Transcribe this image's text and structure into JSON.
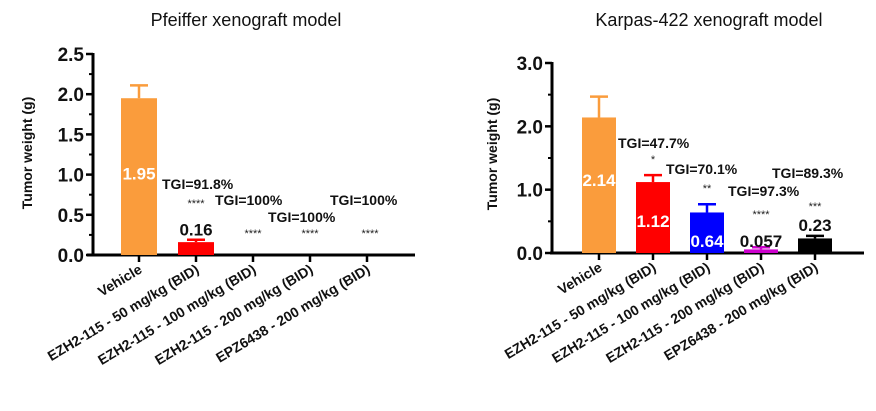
{
  "chart_data": [
    {
      "type": "bar",
      "title": "Pfeiffer xenograft model",
      "xlabel": "",
      "ylabel": "Tumor weight (g)",
      "ylim": [
        0,
        2.5
      ],
      "yticks": [
        "0.0",
        "0.5",
        "1.0",
        "1.5",
        "2.0",
        "2.5"
      ],
      "categories": [
        "Vehicle",
        "EZH2-115 - 50 mg/kg (BID)",
        "EZH2-115 - 100 mg/kg (BID)",
        "EZH2-115 - 200 mg/kg (BID)",
        "EPZ6438 - 200 mg/kg (BID)"
      ],
      "values": [
        1.95,
        0.16,
        0,
        0,
        0
      ],
      "error_upper": [
        2.11,
        0.19,
        0,
        0,
        0
      ],
      "colors": [
        "#FA9C3C",
        "#FF0000",
        "#FF0000",
        "#FF0000",
        "#FF0000"
      ],
      "value_labels": [
        "1.95",
        "0.16",
        "",
        "",
        ""
      ],
      "significance": [
        "",
        "****",
        "****",
        "****",
        "****"
      ],
      "tgi_labels": [
        "",
        "TGI=91.8%",
        "TGI=100%",
        "TGI=100%",
        "TGI=100%"
      ]
    },
    {
      "type": "bar",
      "title": "Karpas-422 xenograft model",
      "xlabel": "",
      "ylabel": "Tumor weight (g)",
      "ylim": [
        0,
        3.0
      ],
      "yticks": [
        "0.0",
        "1.0",
        "2.0",
        "3.0"
      ],
      "categories": [
        "Vehicle",
        "EZH2-115 - 50 mg/kg (BID)",
        "EZH2-115 - 100 mg/kg (BID)",
        "EZH2-115 - 200 mg/kg (BID)",
        "EPZ6438 - 200 mg/kg (BID)"
      ],
      "values": [
        2.14,
        1.12,
        0.64,
        0.057,
        0.23
      ],
      "error_upper": [
        2.47,
        1.23,
        0.77,
        0.09,
        0.27
      ],
      "colors": [
        "#FA9C3C",
        "#FF0000",
        "#0000FF",
        "#CC00CC",
        "#000000"
      ],
      "value_labels": [
        "2.14",
        "1.12",
        "0.64",
        "0.057",
        "0.23"
      ],
      "significance": [
        "",
        "*",
        "**",
        "****",
        "***"
      ],
      "tgi_labels": [
        "",
        "TGI=47.7%",
        "TGI=70.1%",
        "TGI=97.3%",
        "TGI=89.3%"
      ]
    }
  ]
}
